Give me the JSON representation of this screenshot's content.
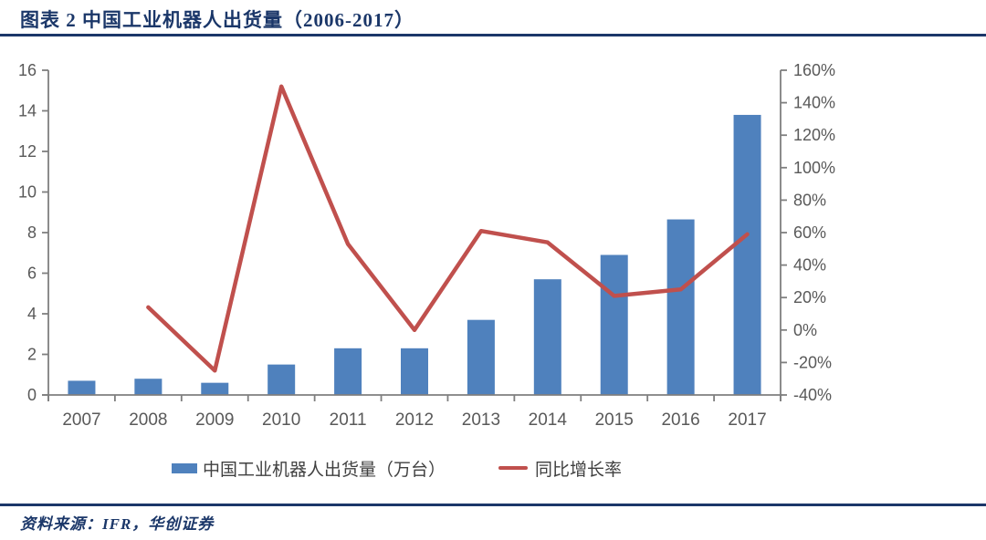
{
  "header": {
    "title": "图表 2 中国工业机器人出货量（2006-2017）"
  },
  "legend": {
    "bars": "中国工业机器人出货量（万台）",
    "line": "同比增长率"
  },
  "footer": {
    "source": "资料来源：IFR，华创证券"
  },
  "colors": {
    "bar": "#4F81BD",
    "line": "#C0504D",
    "accent_navy": "#1B3769",
    "axis": "#7F7F7F",
    "tick_label": "#595959",
    "x_label": "#595959"
  },
  "chart_data": {
    "type": "bar",
    "subtype": "combo-bar-line-dual-axis",
    "title": "图表 2 中国工业机器人出货量（2006-2017）",
    "categories": [
      "2007",
      "2008",
      "2009",
      "2010",
      "2011",
      "2012",
      "2013",
      "2014",
      "2015",
      "2016",
      "2017"
    ],
    "series": [
      {
        "name": "中国工业机器人出货量（万台）",
        "type": "bar",
        "axis": "left",
        "values": [
          0.7,
          0.8,
          0.6,
          1.5,
          2.3,
          2.3,
          3.7,
          5.7,
          6.9,
          8.65,
          13.8
        ]
      },
      {
        "name": "同比增长率",
        "type": "line",
        "axis": "right",
        "unit": "%",
        "values": [
          null,
          14,
          -25,
          150,
          53,
          0,
          61,
          54,
          21,
          25,
          59
        ]
      }
    ],
    "left_axis": {
      "min": 0,
      "max": 16,
      "step": 2,
      "ticks": [
        "16",
        "14",
        "12",
        "10",
        "8",
        "6",
        "4",
        "2",
        "0"
      ]
    },
    "right_axis": {
      "min": -40,
      "max": 160,
      "step": 20,
      "ticks": [
        "160%",
        "140%",
        "120%",
        "100%",
        "80%",
        "60%",
        "40%",
        "20%",
        "0%",
        "-20%",
        "-40%"
      ]
    },
    "grid": false,
    "legend_position": "bottom",
    "xlabel": "",
    "ylabel_left": "万台",
    "ylabel_right": "%"
  }
}
